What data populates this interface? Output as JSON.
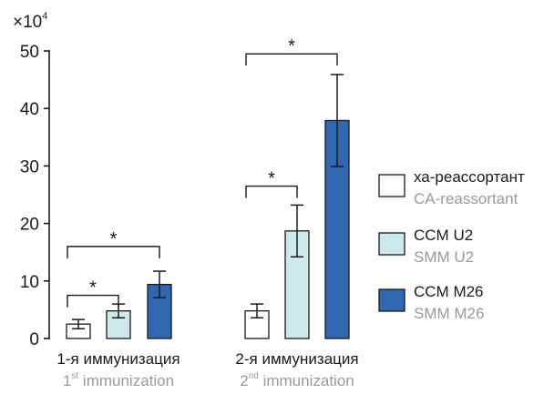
{
  "chart_data": {
    "type": "bar",
    "y_multiplier_label": "×10",
    "y_multiplier_exp": "4",
    "ylim": [
      0,
      50
    ],
    "yticks": [
      "0",
      "10",
      "20",
      "30",
      "40",
      "50"
    ],
    "grid": false,
    "legend_position": "right",
    "categories": [
      {
        "ru": "1-я иммунизация",
        "en_base": "1",
        "en_sup": "st",
        "en_rest": " immunization"
      },
      {
        "ru": "2-я иммунизация",
        "en_base": "2",
        "en_sup": "nd",
        "en_rest": " immunization"
      }
    ],
    "series": [
      {
        "name_ru": "ха-реассортант",
        "name_en": "CA-reassortant",
        "color": "#ffffff",
        "values": [
          2.5,
          4.8
        ],
        "errors": [
          0.8,
          1.2
        ]
      },
      {
        "name_ru": "CCM U2",
        "name_en": "SMM U2",
        "color": "#cde9ec",
        "values": [
          4.8,
          18.7
        ],
        "errors": [
          1.2,
          4.5
        ]
      },
      {
        "name_ru": "CCM M26",
        "name_en": "SMM M26",
        "color": "#2f67b1",
        "values": [
          9.4,
          37.9
        ],
        "errors": [
          2.3,
          8.0
        ]
      }
    ],
    "significance": [
      {
        "category": 0,
        "from_series": 0,
        "to_series": 1,
        "level": 7.5,
        "label": "*"
      },
      {
        "category": 0,
        "from_series": 0,
        "to_series": 2,
        "level": 16.0,
        "label": "*"
      },
      {
        "category": 1,
        "from_series": 0,
        "to_series": 1,
        "level": 26.5,
        "label": "*"
      },
      {
        "category": 1,
        "from_series": 0,
        "to_series": 2,
        "level": 49.5,
        "label": "*"
      }
    ]
  }
}
